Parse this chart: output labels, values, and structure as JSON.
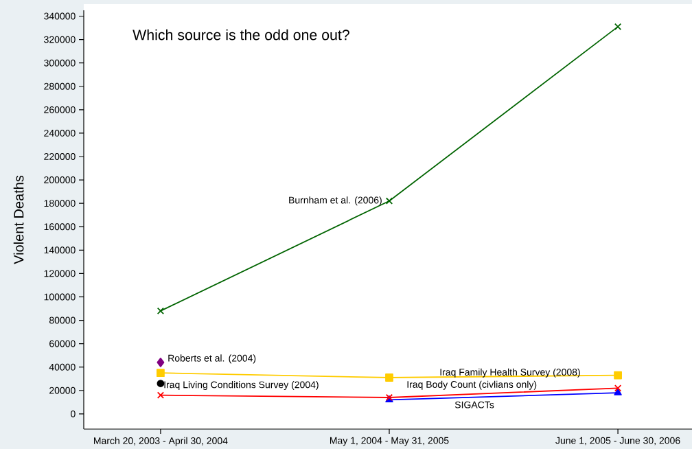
{
  "chart_data": {
    "type": "line",
    "ylabel": "Violent Deaths",
    "categories": [
      "March 20, 2003 - April 30, 2004",
      "May 1, 2004 - May 31, 2005",
      "June 1, 2005 - June 30, 2006"
    ],
    "series": [
      {
        "name": "Burnham et al. (2006)",
        "color": "#006400",
        "marker": "cross",
        "values": [
          88000,
          182000,
          331000
        ]
      },
      {
        "name": "Iraq Family Health Survey (2008)",
        "color": "#ffcc00",
        "marker": "square",
        "values": [
          35000,
          31000,
          33000
        ]
      },
      {
        "name": "Iraq Body Count (civlians only)",
        "color": "#ff0000",
        "marker": "cross",
        "values": [
          16000,
          14000,
          22000
        ]
      },
      {
        "name": "SIGACTs",
        "color": "#0000ff",
        "marker": "triangle",
        "values": [
          null,
          12000,
          18000
        ]
      },
      {
        "name": "Roberts et al. (2004)",
        "type": "scatter",
        "color": "#800080",
        "marker": "diamond",
        "values": [
          44000,
          null,
          null
        ]
      },
      {
        "name": "Iraq Living Conditions Survey (2004)",
        "type": "scatter",
        "color": "#000000",
        "marker": "circle",
        "values": [
          26000,
          null,
          null
        ]
      }
    ],
    "ylim": [
      -13000,
      345000
    ],
    "yticks": [
      0,
      20000,
      40000,
      60000,
      80000,
      100000,
      120000,
      140000,
      160000,
      180000,
      200000,
      220000,
      240000,
      260000,
      280000,
      300000,
      320000,
      340000
    ],
    "annotations": [
      "Which source is the odd one out?"
    ],
    "legend": false,
    "grid": false
  }
}
